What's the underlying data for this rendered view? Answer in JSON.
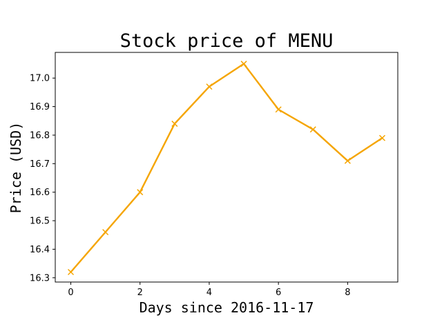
{
  "chart_data": {
    "type": "line",
    "title": "Stock price of MENU",
    "xlabel": "Days since 2016-11-17",
    "ylabel": "Price (USD)",
    "x": [
      0,
      1,
      2,
      3,
      4,
      5,
      6,
      7,
      8,
      9
    ],
    "series": [
      {
        "values": [
          16.32,
          16.46,
          16.6,
          16.84,
          16.97,
          17.05,
          16.89,
          16.82,
          16.71,
          16.79
        ]
      }
    ],
    "marker": "x",
    "line_color": "#f5a500",
    "xlim": [
      -0.45,
      9.45
    ],
    "ylim": [
      16.285,
      17.09
    ],
    "xticks": [
      0,
      2,
      4,
      6,
      8
    ],
    "xtick_labels": [
      "0",
      "2",
      "4",
      "6",
      "8"
    ],
    "yticks": [
      16.3,
      16.4,
      16.5,
      16.6,
      16.7,
      16.8,
      16.9,
      17.0
    ],
    "ytick_labels": [
      "16.3",
      "16.4",
      "16.5",
      "16.6",
      "16.7",
      "16.8",
      "16.9",
      "17.0"
    ],
    "grid": false,
    "legend": "none"
  }
}
